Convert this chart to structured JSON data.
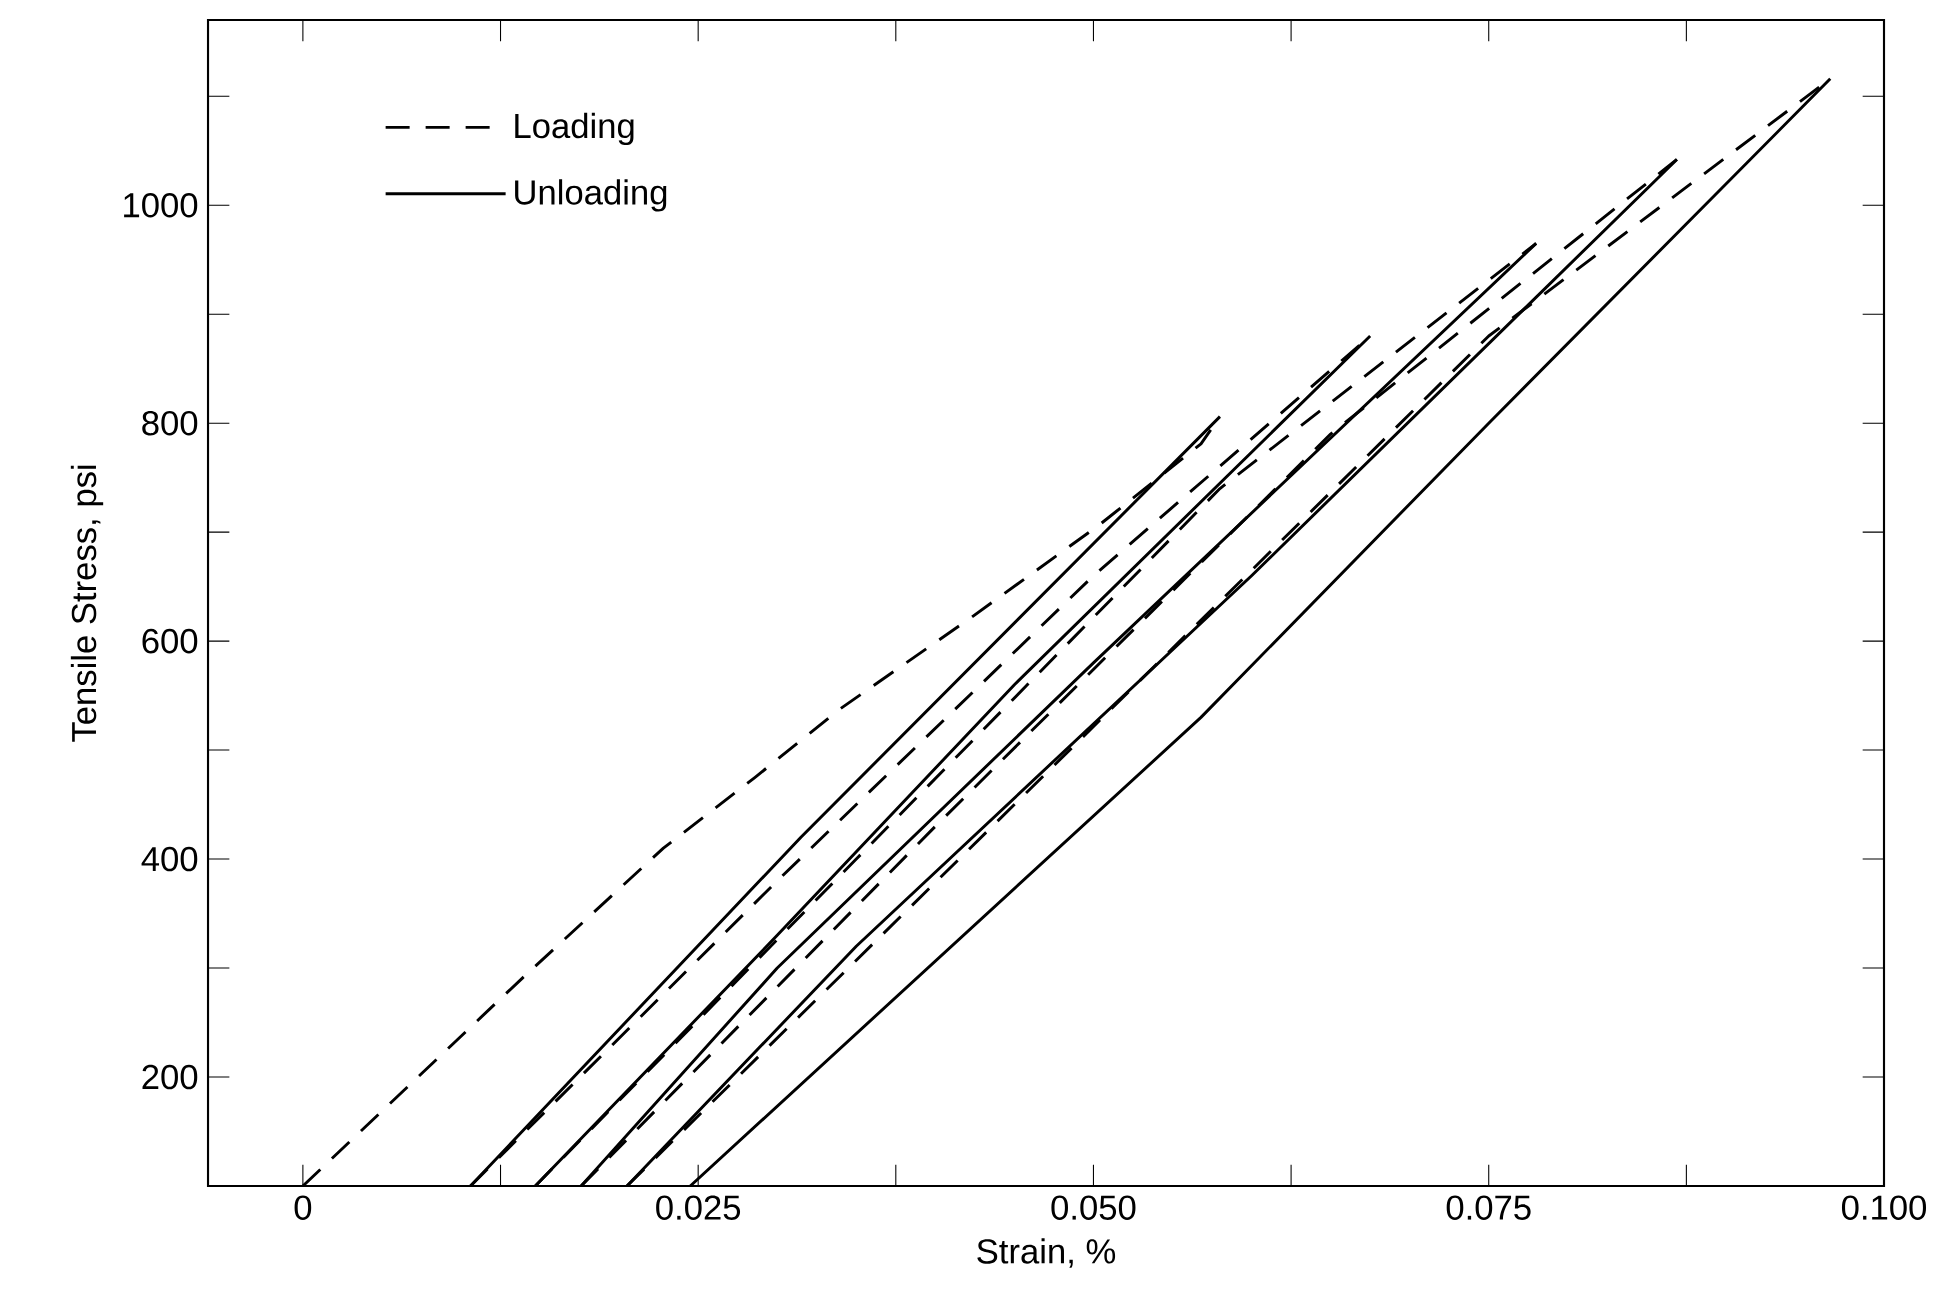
{
  "chart_data": {
    "type": "line",
    "xlabel": "Strain, %",
    "ylabel": "Tensile Stress, psi",
    "xlim": [
      -0.006,
      0.1
    ],
    "ylim": [
      100,
      1170
    ],
    "xticks": [
      0,
      {
        "value": 0.0125,
        "label": null
      },
      {
        "value": 0.025,
        "label": "0.025"
      },
      {
        "value": 0.0375,
        "label": null
      },
      {
        "value": 0.05,
        "label": "0.050"
      },
      {
        "value": 0.0625,
        "label": null
      },
      {
        "value": 0.075,
        "label": "0.075"
      },
      {
        "value": 0.0875,
        "label": null
      },
      {
        "value": 0.1,
        "label": "0.100"
      }
    ],
    "yticks": [
      {
        "value": 100,
        "label": null
      },
      200,
      {
        "value": 300,
        "label": null
      },
      400,
      {
        "value": 500,
        "label": null
      },
      600,
      {
        "value": 700,
        "label": null
      },
      800,
      {
        "value": 900,
        "label": null
      },
      1000,
      {
        "value": 1100,
        "label": null
      }
    ],
    "legend": "top left",
    "grid": false,
    "series": [
      {
        "name": "Loading",
        "color": "#000000",
        "line_style": "dashed",
        "x": [
          0,
          0.0139,
          0.0228,
          0.0286,
          0.0339,
          0.0423,
          0.0504,
          0.0568,
          0.058
        ],
        "values": [
          100,
          291,
          410,
          475,
          537,
          622,
          707,
          781,
          806
        ]
      },
      {
        "name": "Unloading",
        "color": "#000000",
        "line_style": "solid",
        "x": [
          0.058,
          0.0315,
          0.0106
        ],
        "values": [
          806,
          420,
          100
        ]
      },
      {
        "color": "#000000",
        "line_style": "dashed",
        "x": [
          0.0106,
          0.03,
          0.05,
          0.0675
        ],
        "values": [
          100,
          380,
          660,
          880
        ]
      },
      {
        "color": "#000000",
        "line_style": "solid",
        "x": [
          0.0675,
          0.045,
          0.03,
          0.0147
        ],
        "values": [
          880,
          560,
          330,
          100
        ]
      },
      {
        "color": "#000000",
        "line_style": "dashed",
        "x": [
          0.0147,
          0.035,
          0.058,
          0.078
        ],
        "values": [
          100,
          400,
          740,
          965
        ]
      },
      {
        "color": "#000000",
        "line_style": "solid",
        "x": [
          0.078,
          0.05,
          0.03,
          0.0176
        ],
        "values": [
          965,
          580,
          300,
          100
        ]
      },
      {
        "color": "#000000",
        "line_style": "dashed",
        "x": [
          0.0176,
          0.04,
          0.065,
          0.0869
        ],
        "values": [
          100,
          430,
          790,
          1042
        ]
      },
      {
        "color": "#000000",
        "line_style": "solid",
        "x": [
          0.0869,
          0.06,
          0.035,
          0.0205
        ],
        "values": [
          1042,
          660,
          320,
          100
        ]
      },
      {
        "color": "#000000",
        "line_style": "dashed",
        "x": [
          0.0205,
          0.045,
          0.075,
          0.0966
        ],
        "values": [
          100,
          450,
          880,
          1116
        ]
      },
      {
        "color": "#000000",
        "line_style": "solid",
        "x": [
          0.0966,
          0.075,
          0.0568,
          0.0245
        ],
        "values": [
          1116,
          800,
          530,
          100
        ]
      }
    ]
  }
}
